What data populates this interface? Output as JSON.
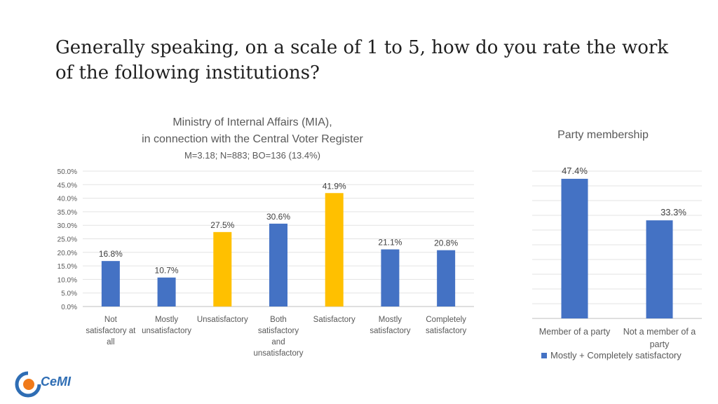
{
  "title": "Generally speaking, on a scale of 1 to 5, how do you rate the work of the following institutions?",
  "logo_text": "CeMI",
  "chart_data": [
    {
      "type": "bar",
      "title": "Ministry of Internal Affairs (MIA),",
      "title2": "in connection with the Central Voter Register",
      "subtitle": "M=3.18; N=883; BO=136 (13.4%)",
      "categories": [
        [
          "Not",
          "satisfactory at",
          "all"
        ],
        [
          "Mostly",
          "unsatisfactory"
        ],
        [
          "Unsatisfactory"
        ],
        [
          "Both",
          "satisfactory",
          "and",
          "unsatisfactory"
        ],
        [
          "Satisfactory"
        ],
        [
          "Mostly",
          "satisfactory"
        ],
        [
          "Completely",
          "satisfactory"
        ]
      ],
      "values": [
        16.8,
        10.7,
        27.5,
        30.6,
        41.9,
        21.1,
        20.8
      ],
      "value_labels": [
        "16.8%",
        "10.7%",
        "27.5%",
        "30.6%",
        "41.9%",
        "21.1%",
        "20.8%"
      ],
      "colors": [
        "#4472c4",
        "#4472c4",
        "#ffc000",
        "#4472c4",
        "#ffc000",
        "#4472c4",
        "#4472c4"
      ],
      "ylim": [
        0,
        50
      ],
      "yticks": [
        "0.0%",
        "5.0%",
        "10.0%",
        "15.0%",
        "20.0%",
        "25.0%",
        "30.0%",
        "35.0%",
        "40.0%",
        "45.0%",
        "50.0%"
      ],
      "grid": true
    },
    {
      "type": "bar",
      "title": "Party membership",
      "categories": [
        [
          "Member of a party"
        ],
        [
          "Not a member of a",
          "party"
        ]
      ],
      "values": [
        47.4,
        33.3
      ],
      "value_labels": [
        "47.4%",
        "33.3%"
      ],
      "colors": [
        "#4472c4",
        "#4472c4"
      ],
      "ylim": [
        0,
        50
      ],
      "grid": true,
      "legend": "Mostly + Completely satisfactory",
      "legend_position": "bottom"
    }
  ]
}
